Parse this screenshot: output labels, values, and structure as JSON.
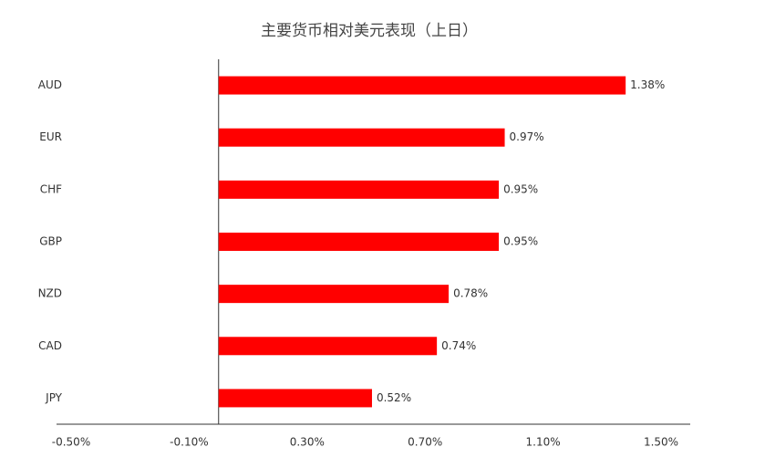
{
  "chart_data": {
    "type": "bar",
    "orientation": "horizontal",
    "title": "主要货币相对美元表现（上日）",
    "categories": [
      "AUD",
      "EUR",
      "CHF",
      "GBP",
      "NZD",
      "CAD",
      "JPY"
    ],
    "values": [
      1.38,
      0.97,
      0.95,
      0.95,
      0.78,
      0.74,
      0.52
    ],
    "value_labels": [
      "1.38%",
      "0.97%",
      "0.95%",
      "0.95%",
      "0.78%",
      "0.74%",
      "0.52%"
    ],
    "color": "#ff0000",
    "xlim": [
      -0.5,
      1.5
    ],
    "xticks": [
      {
        "value": -0.5,
        "label": "-0.50%"
      },
      {
        "value": -0.1,
        "label": "-0.10%"
      },
      {
        "value": 0.3,
        "label": "0.30%"
      },
      {
        "value": 0.7,
        "label": "0.70%"
      },
      {
        "value": 1.1,
        "label": "1.10%"
      },
      {
        "value": 1.5,
        "label": "1.50%"
      }
    ],
    "grid": false
  }
}
